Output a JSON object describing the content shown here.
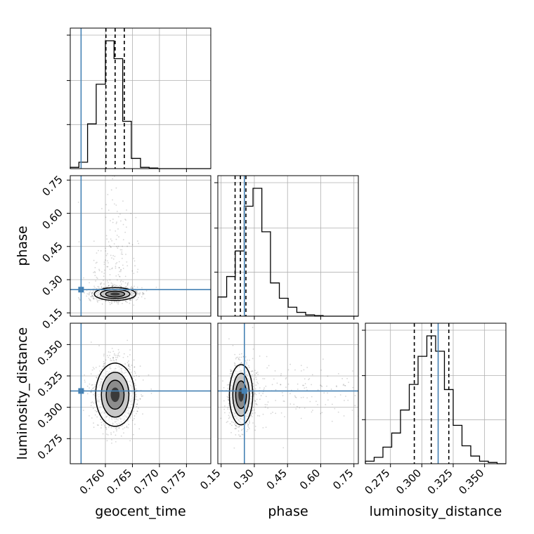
{
  "chart_data": {
    "type": "corner",
    "parameters": [
      "geocent_time",
      "phase",
      "luminosity_distance"
    ],
    "truths": {
      "geocent_time": 0.7555,
      "phase": 0.255,
      "luminosity_distance": 0.313
    },
    "grid": true,
    "axes": {
      "geocent_time": {
        "range": [
          0.7535,
          0.7795
        ],
        "ticks": [
          0.76,
          0.765,
          0.77,
          0.775
        ],
        "tick_labels": [
          "0.760",
          "0.765",
          "0.770",
          "0.775"
        ]
      },
      "phase": {
        "range": [
          0.135,
          0.77
        ],
        "ticks": [
          0.15,
          0.3,
          0.45,
          0.6,
          0.75
        ],
        "tick_labels": [
          "0.15",
          "0.30",
          "0.45",
          "0.60",
          "0.75"
        ]
      },
      "luminosity_distance": {
        "range": [
          0.255,
          0.367
        ],
        "ticks": [
          0.275,
          0.3,
          0.325,
          0.35
        ],
        "tick_labels": [
          "0.275",
          "0.300",
          "0.325",
          "0.350"
        ]
      }
    },
    "marginals": [
      {
        "parameter": "geocent_time",
        "quantiles": [
          0.7601,
          0.7618,
          0.7635
        ],
        "bin_edges": [
          0.7535,
          0.7551,
          0.7567,
          0.7583,
          0.76,
          0.7616,
          0.7632,
          0.7648,
          0.7665,
          0.7681,
          0.7697,
          0.7713,
          0.773,
          0.7746,
          0.7762,
          0.7778,
          0.7795
        ],
        "counts": [
          0.01,
          0.05,
          0.35,
          0.66,
          1.0,
          0.86,
          0.37,
          0.08,
          0.01,
          0.005,
          0.0,
          0.0,
          0.0,
          0.0,
          0.0,
          0.0
        ]
      },
      {
        "parameter": "phase",
        "quantiles": [
          0.213,
          0.237,
          0.262
        ],
        "bin_edges": [
          0.135,
          0.175,
          0.214,
          0.254,
          0.294,
          0.334,
          0.373,
          0.413,
          0.453,
          0.492,
          0.532,
          0.572,
          0.611,
          0.651,
          0.691,
          0.73,
          0.77
        ],
        "counts": [
          0.15,
          0.31,
          0.51,
          0.86,
          1.0,
          0.66,
          0.26,
          0.14,
          0.07,
          0.03,
          0.01,
          0.005,
          0.0,
          0.0,
          0.0,
          0.0
        ]
      },
      {
        "parameter": "luminosity_distance",
        "quantiles": [
          0.294,
          0.3075,
          0.3215
        ],
        "bin_edges": [
          0.255,
          0.262,
          0.269,
          0.276,
          0.283,
          0.29,
          0.297,
          0.304,
          0.311,
          0.318,
          0.325,
          0.332,
          0.339,
          0.346,
          0.353,
          0.36,
          0.367
        ],
        "counts": [
          0.02,
          0.05,
          0.13,
          0.24,
          0.42,
          0.62,
          0.84,
          1.0,
          0.88,
          0.58,
          0.3,
          0.14,
          0.06,
          0.02,
          0.01,
          0.0
        ]
      }
    ],
    "joint": [
      {
        "x": "geocent_time",
        "y": "phase",
        "mean": [
          0.7618,
          0.235
        ],
        "sd": [
          0.0016,
          0.012
        ],
        "tail_y": 0.15
      },
      {
        "x": "geocent_time",
        "y": "luminosity_distance",
        "mean": [
          0.7618,
          0.31
        ],
        "sd": [
          0.0015,
          0.0105
        ],
        "tail_y": 0
      },
      {
        "x": "phase",
        "y": "luminosity_distance",
        "mean": [
          0.24,
          0.31
        ],
        "sd": [
          0.022,
          0.01
        ],
        "tail_x": 0.35
      }
    ],
    "colors": {
      "truth": "#4682b4",
      "contour": "#000000",
      "samples": "#000000",
      "grid": "#b0b0b0"
    }
  }
}
